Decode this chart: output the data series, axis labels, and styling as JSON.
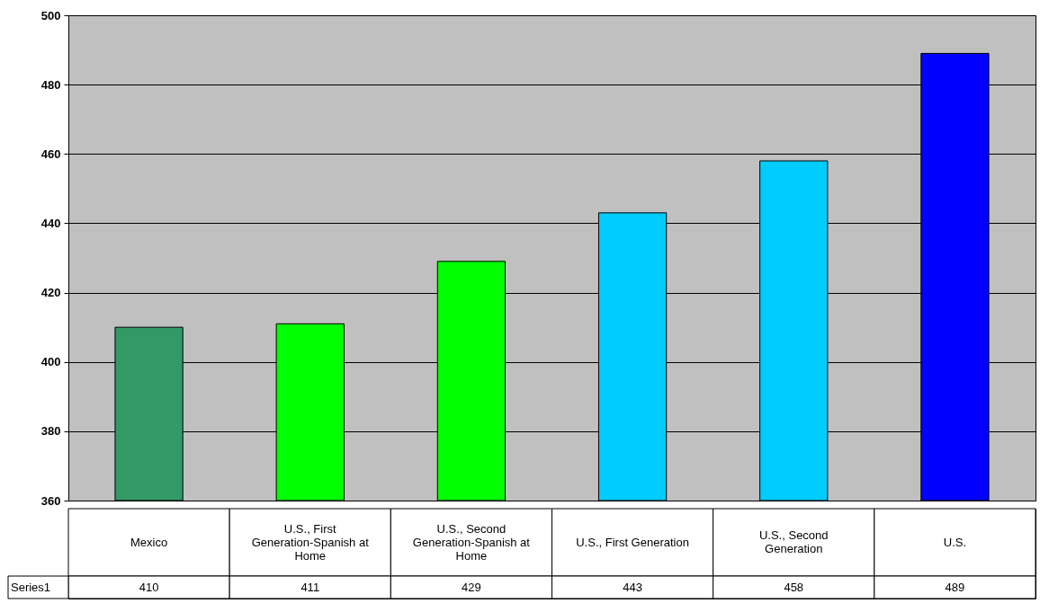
{
  "chart_data": {
    "type": "bar",
    "categories": [
      "Mexico",
      "U.S., First Generation-Spanish at Home",
      "U.S., Second Generation-Spanish at Home",
      "U.S., First Generation",
      "U.S., Second Generation",
      "U.S."
    ],
    "series": [
      {
        "name": "Series1",
        "values": [
          410,
          411,
          429,
          443,
          458,
          489
        ],
        "colors": [
          "#339966",
          "#00ff00",
          "#00ff00",
          "#00ccff",
          "#00ccff",
          "#0000ff"
        ]
      }
    ],
    "ylim": [
      360,
      500
    ],
    "yticks": [
      360,
      380,
      400,
      420,
      440,
      460,
      480,
      500
    ],
    "grid": "y",
    "data_labels": true
  }
}
